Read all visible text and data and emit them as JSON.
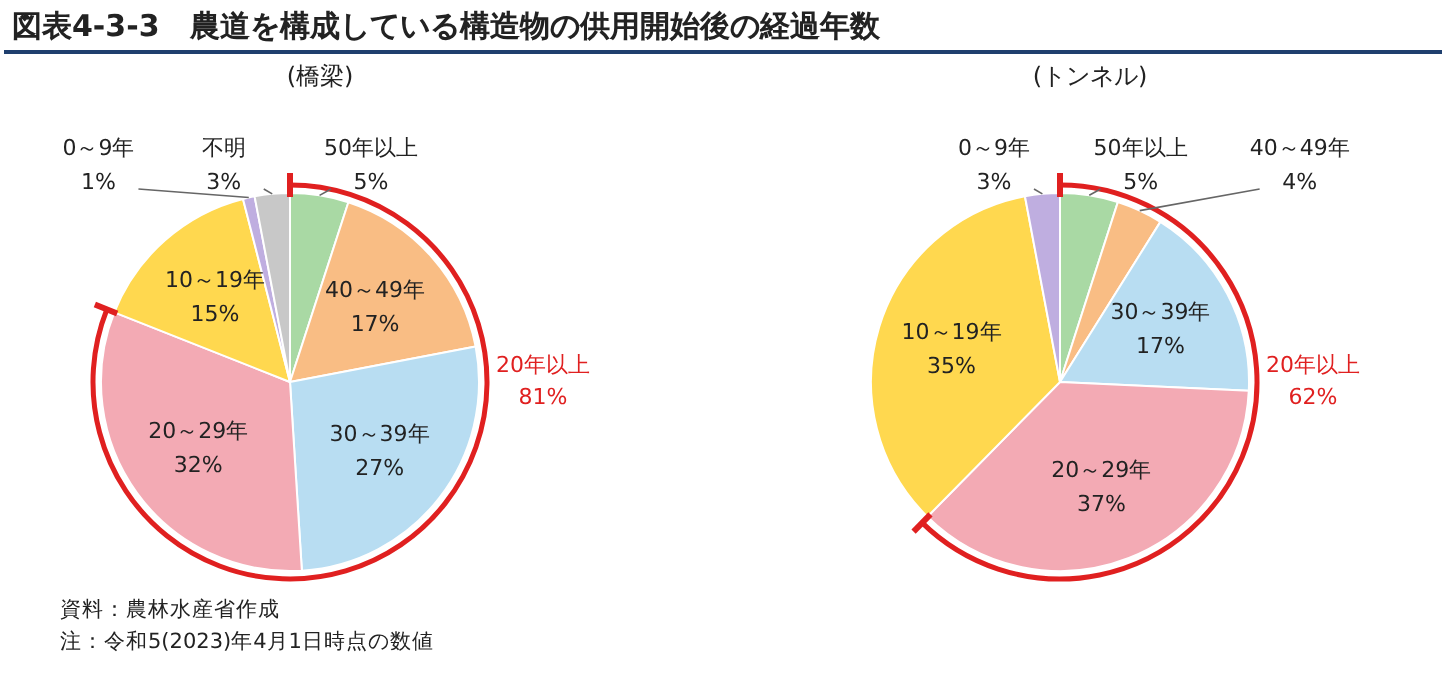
{
  "chart_data": [
    {
      "type": "pie",
      "title": "図表4-3-3　農道を構成している構造物の供用開始後の経過年数",
      "subtitle": "(橋梁)",
      "categories": [
        "50年以上",
        "40～49年",
        "30～39年",
        "20～29年",
        "10～19年",
        "0～9年",
        "不明"
      ],
      "values": [
        5,
        17,
        27,
        32,
        15,
        1,
        3
      ],
      "value_labels": [
        "5%",
        "17%",
        "27%",
        "32%",
        "15%",
        "1%",
        "3%"
      ],
      "colors": [
        "#a9d9a4",
        "#f9bd84",
        "#b8ddf2",
        "#f3aab4",
        "#ffd84f",
        "#bfaee0",
        "#c8c8c8"
      ],
      "annotations": [
        {
          "text": "20年以上\n81%",
          "x": "20～29年"
        },
        "資料：農林水産省作成",
        "注：令和5(2023)年4月1日時点の数値"
      ]
    },
    {
      "type": "pie",
      "subtitle": "(トンネル)",
      "categories": [
        "50年以上",
        "40～49年",
        "30～39年",
        "20～29年",
        "10～19年",
        "0～9年"
      ],
      "values": [
        5,
        4,
        17,
        37,
        35,
        3
      ],
      "value_labels": [
        "5%",
        "4%",
        "17%",
        "37%",
        "35%",
        "3%"
      ],
      "colors": [
        "#a9d9a4",
        "#f9bd84",
        "#b8ddf2",
        "#f3aab4",
        "#ffd84f",
        "#bfaee0"
      ],
      "annotations": [
        {
          "text": "20年以上\n62%",
          "x": "20～29年"
        }
      ]
    }
  ]
}
